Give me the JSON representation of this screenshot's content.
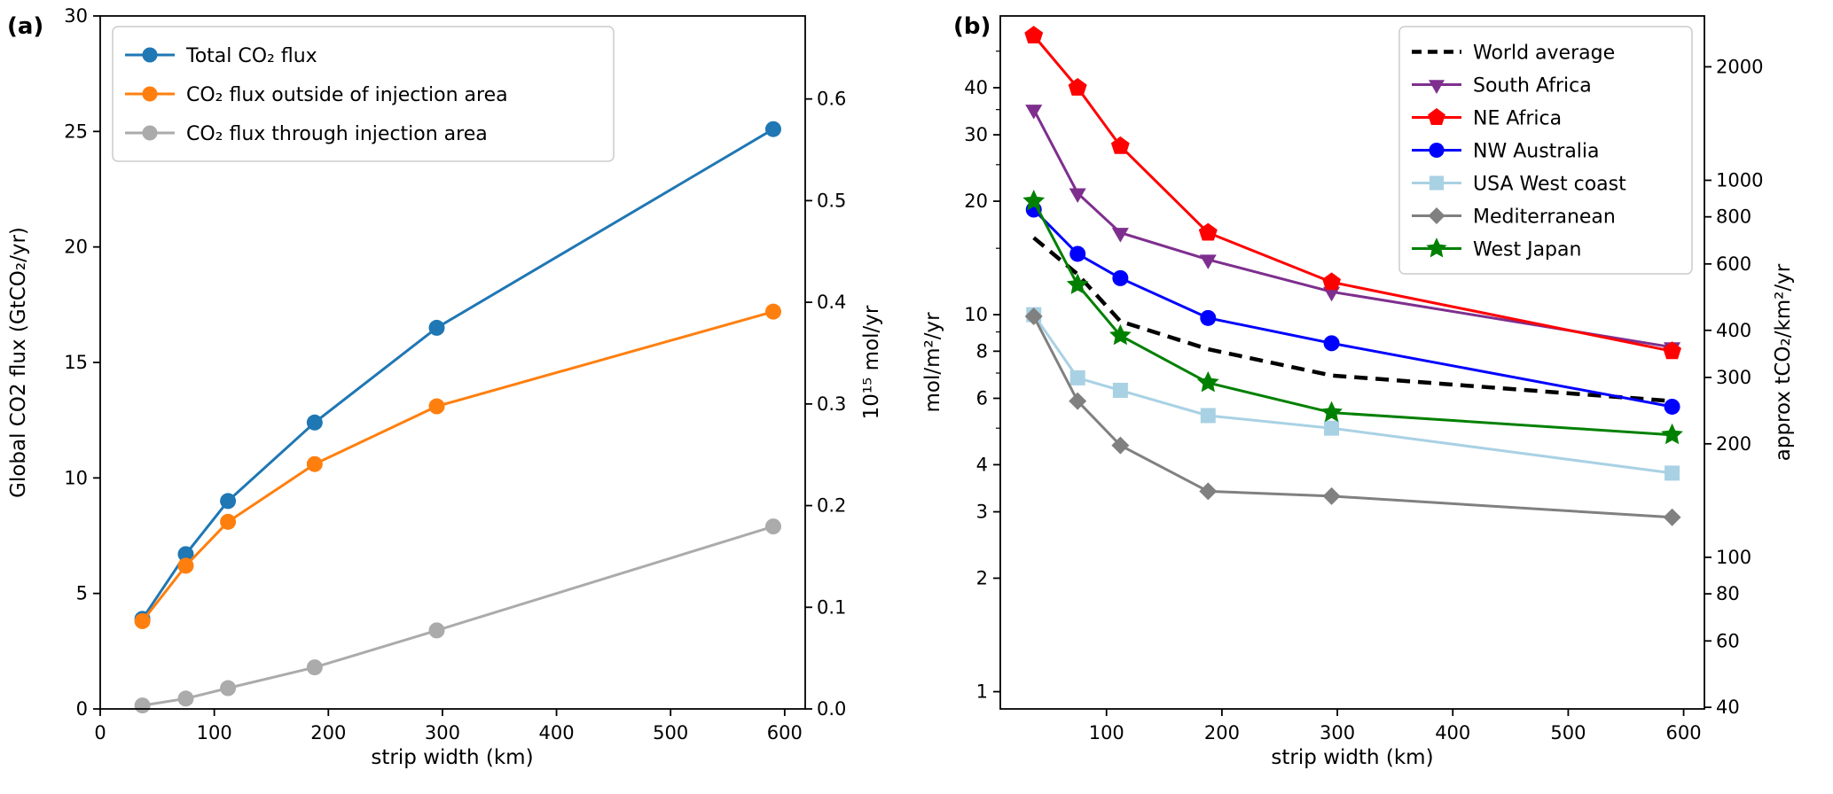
{
  "figure": {
    "background": "#ffffff"
  },
  "chart_data": [
    {
      "type": "line",
      "panel_label": "(a)",
      "xlabel": "strip width (km)",
      "ylabel_left": "Global CO2 flux (GtCO₂/yr)",
      "ylabel_right": "10¹⁵ mol/yr",
      "x": [
        37,
        75,
        112,
        188,
        295,
        590
      ],
      "xlim": [
        0,
        618
      ],
      "ylim_left": [
        0,
        30
      ],
      "yscale": "linear",
      "xticks": [
        0,
        100,
        200,
        300,
        400,
        500,
        600
      ],
      "yticks_left": [
        0,
        5,
        10,
        15,
        20,
        25,
        30
      ],
      "yticks_right": [
        "0.0",
        "0.1",
        "0.2",
        "0.3",
        "0.4",
        "0.5",
        "0.6"
      ],
      "right_to_left_factor": 44.01,
      "legend_position": "upper-left",
      "series": [
        {
          "name": "Total CO₂ flux",
          "color": "#1f77b4",
          "marker": "circle",
          "msize": 9,
          "width": 3,
          "values": [
            3.9,
            6.7,
            9.0,
            12.4,
            16.5,
            25.1
          ]
        },
        {
          "name": "CO₂ flux outside of injection area",
          "color": "#ff7f0e",
          "marker": "circle",
          "msize": 9,
          "width": 3,
          "values": [
            3.8,
            6.2,
            8.1,
            10.6,
            13.1,
            17.2
          ]
        },
        {
          "name": "CO₂ flux through injection area",
          "color": "#ababab",
          "marker": "circle",
          "msize": 9,
          "width": 3,
          "values": [
            0.15,
            0.45,
            0.9,
            1.8,
            3.4,
            7.9
          ]
        }
      ]
    },
    {
      "type": "line",
      "panel_label": "(b)",
      "xlabel": "strip width (km)",
      "ylabel_left": "mol/m²/yr",
      "ylabel_right": "approx tCO₂/km²/yr",
      "x": [
        37,
        75,
        112,
        188,
        295,
        590
      ],
      "xlim": [
        8,
        618
      ],
      "ylim_left": [
        0.9,
        62
      ],
      "yscale": "log",
      "xticks": [
        100,
        200,
        300,
        400,
        500,
        600
      ],
      "yticks_left": [
        1,
        2,
        3,
        4,
        6,
        8,
        10,
        20,
        30,
        40
      ],
      "yticks_left_minor": [
        5,
        7,
        9,
        15,
        25,
        35,
        50
      ],
      "yticks_right": [
        40,
        60,
        80,
        100,
        200,
        300,
        400,
        600,
        800,
        1000,
        2000
      ],
      "right_to_left_factor": 0.022722,
      "legend_position": "upper-right",
      "series": [
        {
          "name": "World average",
          "color": "#000000",
          "dash": true,
          "width": 4.5,
          "values": [
            16,
            12.8,
            9.6,
            8.1,
            6.9,
            5.9
          ]
        },
        {
          "name": "South Africa",
          "color": "#7e2f8e",
          "marker": "triangle-down",
          "msize": 11,
          "width": 3,
          "values": [
            35,
            21,
            16.5,
            14,
            11.5,
            8.2
          ]
        },
        {
          "name": "NE Africa",
          "color": "#ff0000",
          "marker": "pentagon",
          "msize": 11,
          "width": 3,
          "values": [
            55,
            40,
            28,
            16.5,
            12.2,
            8.0
          ]
        },
        {
          "name": "NW Australia",
          "color": "#0000ff",
          "marker": "circle",
          "msize": 9,
          "width": 3,
          "values": [
            19,
            14.5,
            12.5,
            9.8,
            8.4,
            5.7
          ]
        },
        {
          "name": "USA West coast",
          "color": "#a9d1e4",
          "marker": "square",
          "msize": 8.5,
          "width": 3,
          "values": [
            10,
            6.8,
            6.3,
            5.4,
            5.0,
            3.8
          ]
        },
        {
          "name": "Mediterranean",
          "color": "#808080",
          "marker": "diamond",
          "msize": 10,
          "width": 3,
          "values": [
            9.9,
            5.9,
            4.5,
            3.4,
            3.3,
            2.9
          ]
        },
        {
          "name": "West Japan",
          "color": "#008000",
          "marker": "star",
          "msize": 13,
          "width": 3,
          "values": [
            20,
            12,
            8.8,
            6.6,
            5.5,
            4.8
          ]
        }
      ]
    }
  ]
}
